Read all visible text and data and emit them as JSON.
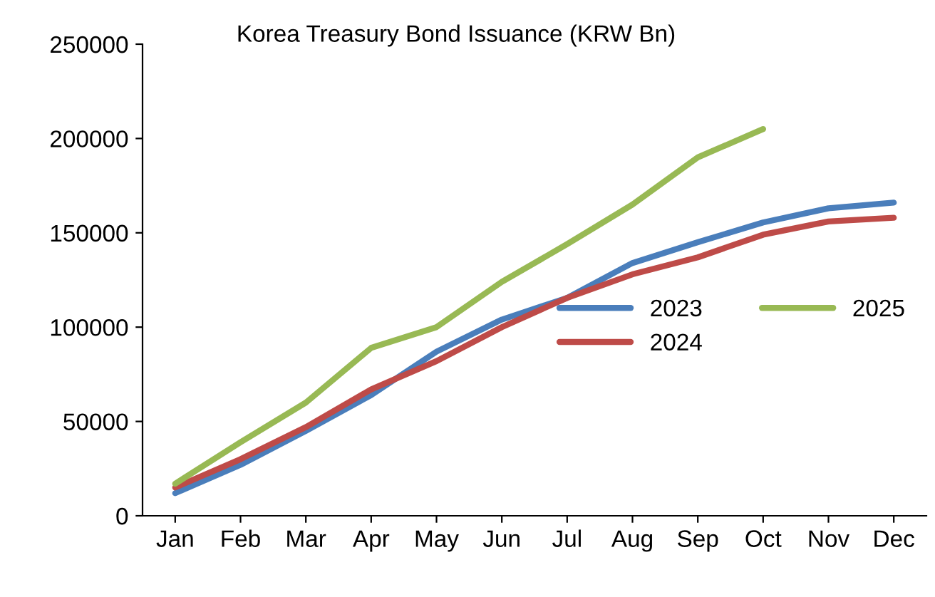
{
  "chart_data": {
    "type": "line",
    "title": "Korea Treasury Bond Issuance (KRW Bn)",
    "categories": [
      "Jan",
      "Feb",
      "Mar",
      "Apr",
      "May",
      "Jun",
      "Jul",
      "Aug",
      "Sep",
      "Oct",
      "Nov",
      "Dec"
    ],
    "series": [
      {
        "name": "2023",
        "color": "#4a7ebb",
        "values": [
          12000,
          27000,
          45000,
          64000,
          87000,
          104000,
          115500,
          134000,
          145000,
          155500,
          163000,
          166000
        ]
      },
      {
        "name": "2024",
        "color": "#be4b48",
        "values": [
          15000,
          30000,
          47000,
          67000,
          82000,
          100000,
          115500,
          128000,
          137000,
          149000,
          156000,
          158000
        ]
      },
      {
        "name": "2025",
        "color": "#98b954",
        "values": [
          17000,
          39000,
          60000,
          89000,
          100000,
          124000,
          144000,
          165000,
          190000,
          205000,
          null,
          null
        ]
      }
    ],
    "ylim": [
      0,
      250000
    ],
    "yticks": [
      0,
      50000,
      100000,
      150000,
      200000,
      250000
    ],
    "grid": false,
    "legend": "center right",
    "marker": "none",
    "line_style": "solid"
  }
}
